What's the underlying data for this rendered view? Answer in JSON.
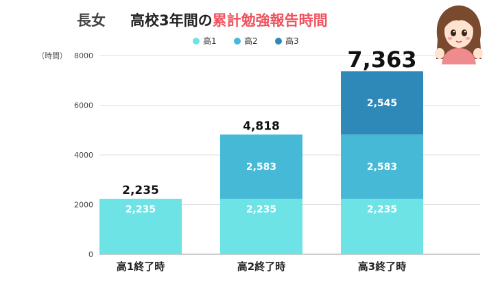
{
  "title": {
    "prefix": "長女",
    "main": "高校3年間の",
    "accent": "累計勉強報告時間"
  },
  "colors": {
    "accent": "#f0525e",
    "series": [
      "#6ee3e6",
      "#45b9d6",
      "#2e89b8"
    ]
  },
  "chart_data": {
    "type": "bar",
    "stacked": true,
    "categories": [
      "高1終了時",
      "高2終了時",
      "高3終了時"
    ],
    "series": [
      {
        "name": "高1",
        "values": [
          2235,
          2235,
          2235
        ],
        "labels": [
          "2,235",
          "2,235",
          "2,235"
        ]
      },
      {
        "name": "高2",
        "values": [
          null,
          2583,
          2583
        ],
        "labels": [
          "",
          "2,583",
          "2,583"
        ]
      },
      {
        "name": "高3",
        "values": [
          null,
          null,
          2545
        ],
        "labels": [
          "",
          "",
          "2,545"
        ]
      }
    ],
    "totals": [
      2235,
      4818,
      7363
    ],
    "total_labels": [
      "2,235",
      "4,818",
      "7,363"
    ],
    "ylabel": "（時間）",
    "ylim": [
      0,
      8000
    ],
    "yticks": [
      0,
      2000,
      4000,
      6000,
      8000
    ],
    "ytick_labels": [
      "0",
      "2000",
      "4000",
      "6000",
      "8000"
    ],
    "grid": true,
    "legend_position": "top"
  }
}
